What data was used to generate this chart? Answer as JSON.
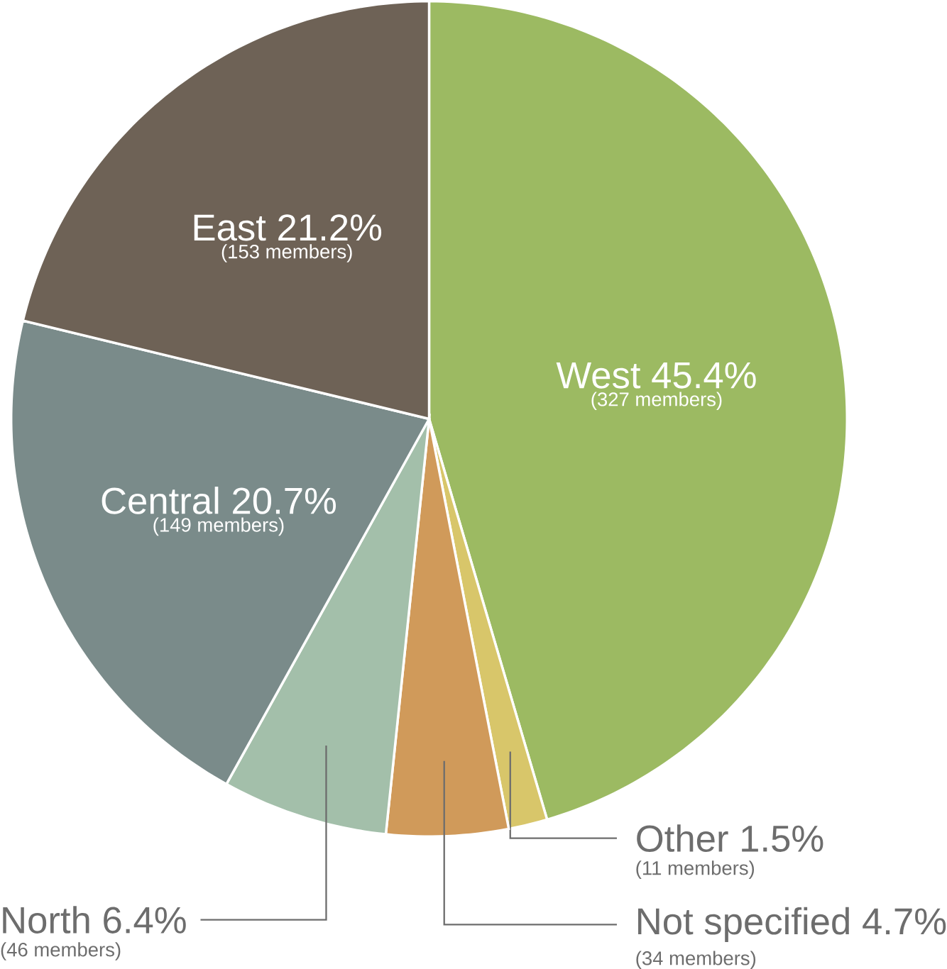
{
  "chart_data": {
    "type": "pie",
    "categories": [
      "West",
      "Other",
      "Not specified",
      "North",
      "Central",
      "East"
    ],
    "values": [
      45.4,
      1.5,
      4.7,
      6.4,
      20.7,
      21.2
    ],
    "colors": [
      "#9cba62",
      "#d8c66a",
      "#d09a5a",
      "#a3bfaa",
      "#7a8b8a",
      "#6e6256"
    ],
    "value_labels": [
      "45.4%",
      "1.5%",
      "4.7%",
      "6.4%",
      "20.7%",
      "21.2%"
    ],
    "annotations": [
      "(327 members)",
      "(11 members)",
      "(34 members)",
      "(46 members)",
      "(149 members)",
      "(153 members)"
    ]
  }
}
